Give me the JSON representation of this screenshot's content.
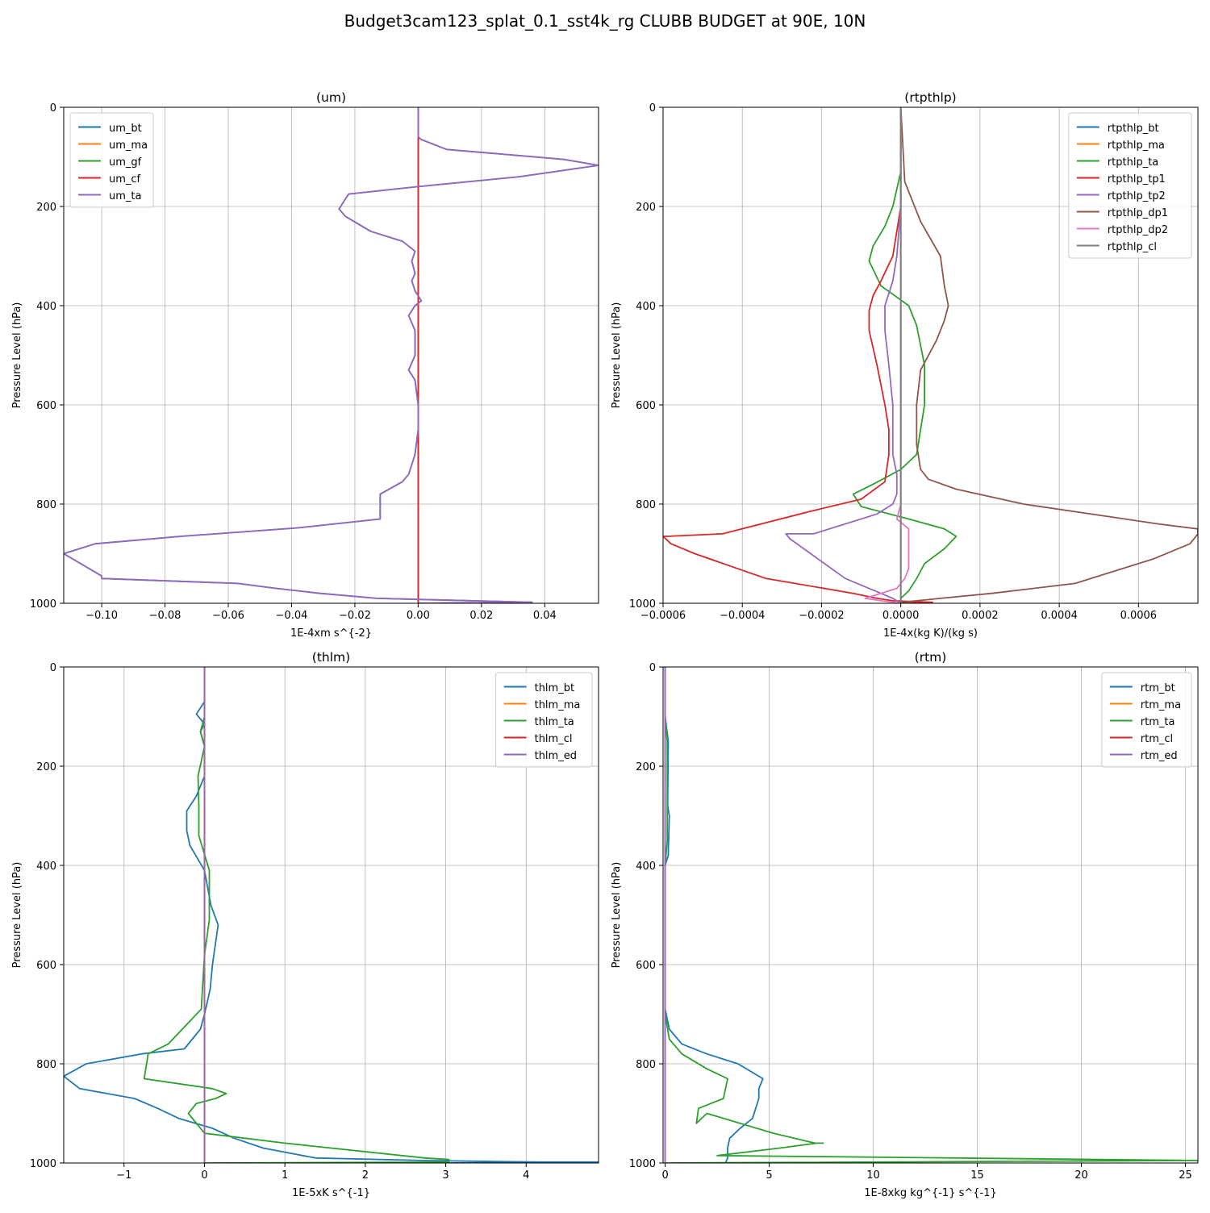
{
  "figure": {
    "suptitle": "Budget3cam123_splat_0.1_sst4k_rg CLUBB BUDGET at 90E, 10N"
  },
  "colors": {
    "c0": "#1f77b4",
    "c1": "#ff7f0e",
    "c2": "#2ca02c",
    "c3": "#d62728",
    "c4": "#9467bd",
    "c5": "#8c564b",
    "c6": "#e377c2",
    "c7": "#7f7f7f",
    "grid": "#b0b0b0"
  },
  "chart_data": [
    {
      "type": "line",
      "title": "(um)",
      "xlabel": "1E-4xm s^{-2}",
      "ylabel": "Pressure Level (hPa)",
      "xlim": [
        -0.112,
        0.057
      ],
      "ylim": [
        1000,
        0
      ],
      "xticks": [
        -0.1,
        -0.08,
        -0.06,
        -0.04,
        -0.02,
        0.0,
        0.02,
        0.04
      ],
      "xticklabels": [
        "−0.10",
        "−0.08",
        "−0.06",
        "−0.04",
        "−0.02",
        "0.00",
        "0.02",
        "0.04"
      ],
      "yticks": [
        0,
        200,
        400,
        600,
        800,
        1000
      ],
      "yticklabels": [
        "0",
        "200",
        "400",
        "600",
        "800",
        "1000"
      ],
      "grid": true,
      "legend_loc": "top-left",
      "series": [
        {
          "name": "um_bt",
          "color": "c0",
          "x": [
            0,
            0,
            0.001,
            0.009,
            0.046,
            0.057,
            0.032,
            0,
            -0.022,
            -0.025,
            -0.023,
            -0.015,
            -0.005,
            -0.001,
            -0.002,
            -0.001,
            -0.002,
            -0.001,
            0.001,
            -0.001,
            -0.003,
            -0.001,
            -0.001,
            -0.003,
            -0.001,
            0,
            0,
            -0.001,
            -0.003,
            -0.005,
            -0.012,
            -0.012,
            -0.038,
            -0.075,
            -0.102,
            -0.112,
            -0.1,
            -0.1,
            -0.057,
            -0.045,
            -0.031,
            -0.013,
            0.036,
            0
          ],
          "y": [
            0,
            60,
            65,
            85,
            105,
            117,
            140,
            160,
            175,
            205,
            220,
            250,
            270,
            290,
            310,
            335,
            350,
            370,
            390,
            400,
            420,
            450,
            500,
            530,
            550,
            600,
            650,
            700,
            740,
            755,
            780,
            830,
            848,
            865,
            880,
            900,
            945,
            950,
            960,
            970,
            980,
            990,
            998,
            1000
          ]
        },
        {
          "name": "um_ma",
          "color": "c1",
          "x": [
            0,
            0
          ],
          "y": [
            0,
            1000
          ]
        },
        {
          "name": "um_gf",
          "color": "c2",
          "x": [
            0,
            0
          ],
          "y": [
            0,
            1000
          ]
        },
        {
          "name": "um_cf",
          "color": "c3",
          "x": [
            0,
            0
          ],
          "y": [
            0,
            1000
          ]
        },
        {
          "name": "um_ta",
          "color": "c4",
          "x": [
            0,
            0,
            0.001,
            0.009,
            0.046,
            0.057,
            0.032,
            0,
            -0.022,
            -0.025,
            -0.023,
            -0.015,
            -0.005,
            -0.001,
            -0.002,
            -0.001,
            -0.002,
            -0.001,
            0.001,
            -0.001,
            -0.003,
            -0.001,
            -0.001,
            -0.003,
            -0.001,
            0,
            0,
            -0.001,
            -0.003,
            -0.005,
            -0.012,
            -0.012,
            -0.038,
            -0.075,
            -0.102,
            -0.112,
            -0.1,
            -0.1,
            -0.057,
            -0.045,
            -0.031,
            -0.013,
            0.036,
            0
          ],
          "y": [
            0,
            60,
            65,
            85,
            105,
            117,
            140,
            160,
            175,
            205,
            220,
            250,
            270,
            290,
            310,
            335,
            350,
            370,
            390,
            400,
            420,
            450,
            500,
            530,
            550,
            600,
            650,
            700,
            740,
            755,
            780,
            830,
            848,
            865,
            880,
            900,
            945,
            950,
            960,
            970,
            980,
            990,
            998,
            1000
          ]
        }
      ]
    },
    {
      "type": "line",
      "title": "(rtpthlp)",
      "xlabel": "1E-4x(kg K)/(kg s)",
      "ylabel": "Pressure Level (hPa)",
      "xlim": [
        -0.0006,
        0.00075
      ],
      "ylim": [
        1000,
        0
      ],
      "xticks": [
        -0.0006,
        -0.0004,
        -0.0002,
        0.0,
        0.0002,
        0.0004,
        0.0006
      ],
      "xticklabels": [
        "−0.0006",
        "−0.0004",
        "−0.0002",
        "0.0000",
        "0.0002",
        "0.0004",
        "0.0006"
      ],
      "yticks": [
        0,
        200,
        400,
        600,
        800,
        1000
      ],
      "yticklabels": [
        "0",
        "200",
        "400",
        "600",
        "800",
        "1000"
      ],
      "grid": true,
      "legend_loc": "top-right",
      "series": [
        {
          "name": "rtpthlp_bt",
          "color": "c0",
          "x": [
            0,
            0
          ],
          "y": [
            0,
            1000
          ]
        },
        {
          "name": "rtpthlp_ma",
          "color": "c1",
          "x": [
            0,
            0
          ],
          "y": [
            0,
            1000
          ]
        },
        {
          "name": "rtpthlp_ta",
          "color": "c2",
          "x": [
            0,
            0,
            -2e-05,
            -4e-05,
            -7e-05,
            -8e-05,
            -5e-05,
            2e-05,
            4e-05,
            6e-05,
            6e-05,
            5e-05,
            4e-05,
            0,
            -7e-05,
            -0.00012,
            -0.0001,
            2e-05,
            0.00011,
            0.00014,
            0.00011,
            6e-05,
            4e-05,
            2e-05,
            0,
            0
          ],
          "y": [
            0,
            130,
            200,
            240,
            280,
            310,
            360,
            400,
            440,
            520,
            600,
            650,
            700,
            730,
            760,
            780,
            805,
            830,
            850,
            865,
            890,
            920,
            950,
            975,
            990,
            1000
          ]
        },
        {
          "name": "rtpthlp_tp1",
          "color": "c3",
          "x": [
            0,
            0,
            -2e-05,
            -5e-05,
            -7e-05,
            -8e-05,
            -8e-05,
            -6e-05,
            -4e-05,
            -3e-05,
            -3e-05,
            -4e-05,
            -0.0001,
            -0.00023,
            -0.00045,
            -0.00059,
            -0.0006,
            -0.00058,
            -0.00052,
            -0.00034,
            -0.00012,
            -6e-05,
            -2e-05,
            8e-05,
            0
          ],
          "y": [
            0,
            200,
            300,
            350,
            380,
            410,
            450,
            520,
            600,
            650,
            700,
            755,
            790,
            815,
            860,
            865,
            865,
            880,
            900,
            950,
            980,
            990,
            995,
            998,
            1000
          ]
        },
        {
          "name": "rtpthlp_tp2",
          "color": "c4",
          "x": [
            0,
            0,
            -1e-05,
            -2e-05,
            -4e-05,
            -4e-05,
            -3e-05,
            -2e-05,
            -2e-05,
            -1e-05,
            -1e-05,
            -2e-05,
            -6e-05,
            -0.00022,
            -0.00029,
            -0.00028,
            -0.00021,
            -0.00014,
            -5e-05,
            -2e-05,
            -1e-05,
            0
          ],
          "y": [
            0,
            200,
            300,
            350,
            400,
            450,
            520,
            600,
            700,
            740,
            780,
            800,
            820,
            860,
            860,
            870,
            910,
            950,
            980,
            990,
            995,
            1000
          ]
        },
        {
          "name": "rtpthlp_dp1",
          "color": "c5",
          "x": [
            0,
            1e-05,
            5e-05,
            0.0001,
            0.00011,
            0.00012,
            0.00011,
            9e-05,
            5e-05,
            4e-05,
            4e-05,
            5e-05,
            7e-05,
            0.00014,
            0.00031,
            0.00065,
            0.00075,
            0.00075,
            0.00073,
            0.00064,
            0.00044,
            0.00023,
            0.0001,
            4e-05,
            0,
            0
          ],
          "y": [
            0,
            150,
            230,
            300,
            360,
            400,
            430,
            470,
            530,
            600,
            680,
            730,
            750,
            770,
            800,
            840,
            850,
            860,
            880,
            910,
            960,
            980,
            990,
            995,
            998,
            1000
          ]
        },
        {
          "name": "rtpthlp_dp2",
          "color": "c6",
          "x": [
            0,
            0,
            -1e-05,
            2e-05,
            2e-05,
            2e-05,
            1e-05,
            -1e-05,
            -9e-05,
            -5e-05,
            0
          ],
          "y": [
            0,
            800,
            830,
            850,
            880,
            930,
            950,
            970,
            990,
            995,
            1000
          ]
        },
        {
          "name": "rtpthlp_cl",
          "color": "c7",
          "x": [
            0,
            0
          ],
          "y": [
            0,
            1000
          ]
        }
      ]
    },
    {
      "type": "line",
      "title": "(thlm)",
      "xlabel": "1E-5xK s^{-1}",
      "ylabel": "Pressure Level (hPa)",
      "xlim": [
        -1.75,
        4.9
      ],
      "ylim": [
        1000,
        0
      ],
      "xticks": [
        -1,
        0,
        1,
        2,
        3,
        4
      ],
      "xticklabels": [
        "−1",
        "0",
        "1",
        "2",
        "3",
        "4"
      ],
      "yticks": [
        0,
        200,
        400,
        600,
        800,
        1000
      ],
      "yticklabels": [
        "0",
        "200",
        "400",
        "600",
        "800",
        "1000"
      ],
      "grid": true,
      "legend_loc": "top-right",
      "series": [
        {
          "name": "thlm_bt",
          "color": "c0",
          "x": [
            0,
            0,
            -0.1,
            0,
            -0.05,
            0,
            0,
            -0.1,
            -0.22,
            -0.22,
            -0.18,
            0,
            0.08,
            0.17,
            0.1,
            0.07,
            0,
            -0.05,
            -0.25,
            -0.78,
            -1.47,
            -1.75,
            -1.55,
            -0.87,
            -0.58,
            -0.32,
            0.1,
            0.37,
            0.73,
            1.38,
            2.72,
            4.17,
            4.6,
            4.9,
            2.8,
            2.75
          ],
          "y": [
            0,
            70,
            95,
            115,
            130,
            160,
            220,
            260,
            290,
            330,
            360,
            410,
            480,
            520,
            600,
            650,
            700,
            730,
            770,
            780,
            800,
            825,
            850,
            870,
            890,
            910,
            930,
            950,
            970,
            990,
            995,
            998,
            998,
            998,
            1000,
            1000
          ]
        },
        {
          "name": "thlm_ma",
          "color": "c1",
          "x": [
            0,
            0
          ],
          "y": [
            0,
            1000
          ]
        },
        {
          "name": "thlm_ta",
          "color": "c2",
          "x": [
            0,
            0,
            -0.05,
            0,
            -0.08,
            -0.07,
            -0.07,
            0.06,
            0.06,
            0,
            -0.04,
            -0.45,
            -0.7,
            -0.75,
            0.1,
            0.27,
            0.14,
            -0.1,
            -0.2,
            0,
            1.0,
            2.74,
            3.04,
            3.04,
            0
          ],
          "y": [
            0,
            100,
            130,
            160,
            220,
            280,
            340,
            410,
            510,
            580,
            690,
            760,
            780,
            830,
            850,
            860,
            870,
            880,
            900,
            940,
            960,
            990,
            993,
            998,
            1000
          ]
        },
        {
          "name": "thlm_cl",
          "color": "c3",
          "x": [
            0,
            0
          ],
          "y": [
            0,
            1000
          ]
        },
        {
          "name": "thlm_ed",
          "color": "c4",
          "x": [
            0,
            0
          ],
          "y": [
            0,
            1000
          ]
        }
      ]
    },
    {
      "type": "line",
      "title": "(rtm)",
      "xlabel": "1E-8xkg kg^{-1} s^{-1}",
      "ylabel": "Pressure Level (hPa)",
      "xlim": [
        -0.1,
        25.6
      ],
      "ylim": [
        1000,
        0
      ],
      "xticks": [
        0,
        5,
        10,
        15,
        20,
        25
      ],
      "xticklabels": [
        "0",
        "5",
        "10",
        "15",
        "20",
        "25"
      ],
      "yticks": [
        0,
        200,
        400,
        600,
        800,
        1000
      ],
      "yticklabels": [
        "0",
        "200",
        "400",
        "600",
        "800",
        "1000"
      ],
      "grid": true,
      "legend_loc": "top-right",
      "series": [
        {
          "name": "rtm_bt",
          "color": "c0",
          "x": [
            0,
            0,
            0.15,
            0.12,
            0.2,
            0.15,
            0,
            0,
            0,
            0,
            0.2,
            0.8,
            2.0,
            3.5,
            4.7,
            4.5,
            4.5,
            4.2,
            3.6,
            3.1,
            3.0,
            3.0,
            2.9
          ],
          "y": [
            0,
            100,
            150,
            280,
            300,
            380,
            400,
            450,
            600,
            690,
            730,
            760,
            780,
            800,
            830,
            850,
            870,
            910,
            930,
            950,
            970,
            990,
            1000
          ]
        },
        {
          "name": "rtm_ma",
          "color": "c1",
          "x": [
            0,
            0
          ],
          "y": [
            0,
            1000
          ]
        },
        {
          "name": "rtm_ta",
          "color": "c2",
          "x": [
            0,
            0,
            0.1,
            0.1,
            0,
            0,
            0,
            0.2,
            0.8,
            2.0,
            3.0,
            2.8,
            1.6,
            1.5,
            2.0,
            5.2,
            7.2,
            7.6,
            7.3,
            5.5,
            2.5,
            14.0,
            25.6,
            0
          ],
          "y": [
            0,
            100,
            150,
            350,
            400,
            600,
            700,
            750,
            780,
            810,
            830,
            870,
            890,
            920,
            900,
            940,
            960,
            960,
            960,
            970,
            985,
            990,
            995,
            1000
          ]
        },
        {
          "name": "rtm_cl",
          "color": "c3",
          "x": [
            0,
            0
          ],
          "y": [
            0,
            1000
          ]
        },
        {
          "name": "rtm_ed",
          "color": "c4",
          "x": [
            0,
            0
          ],
          "y": [
            0,
            1000
          ]
        }
      ]
    }
  ]
}
